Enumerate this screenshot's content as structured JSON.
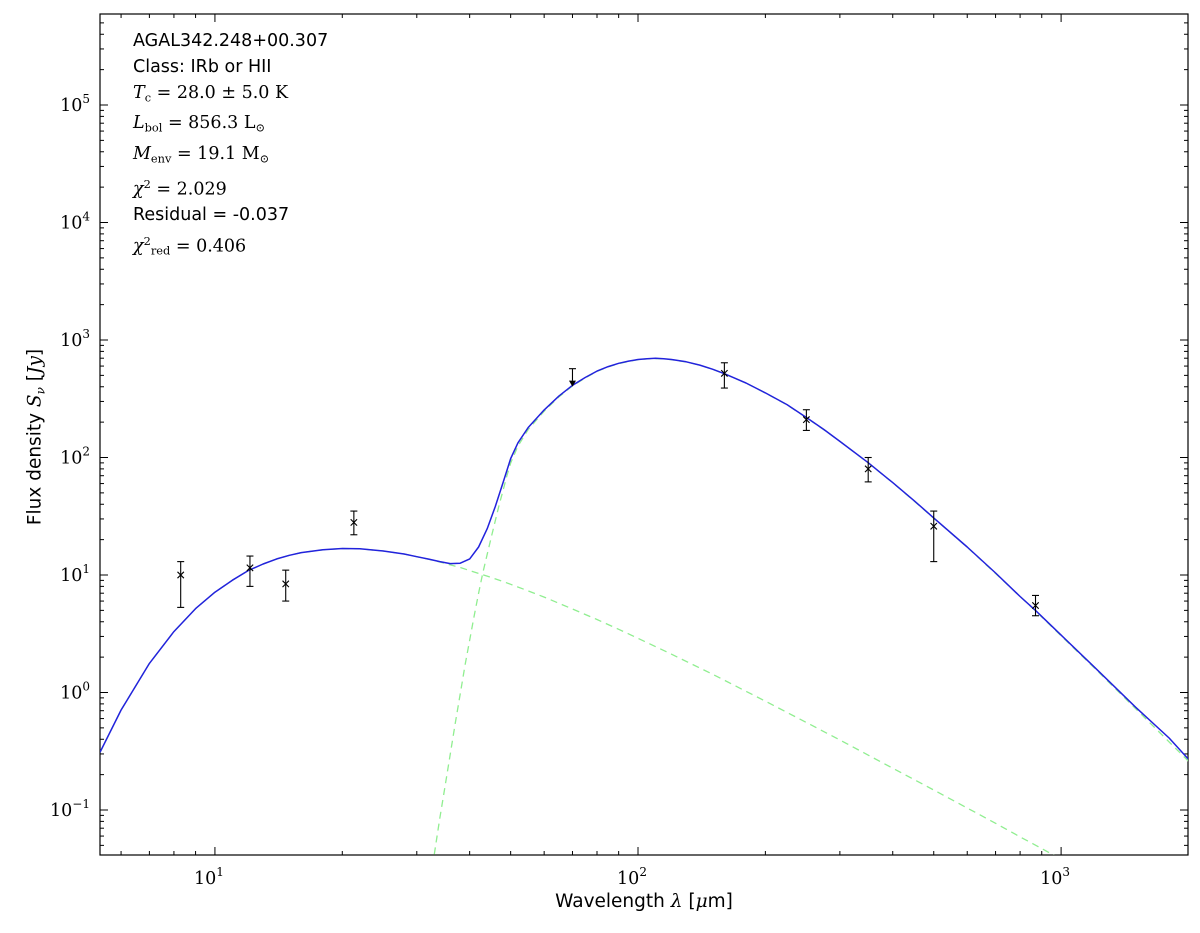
{
  "figure": {
    "title": "",
    "background": "#ffffff",
    "frame_color": "#000000"
  },
  "annotation": {
    "lines": [
      {
        "name": "source-name",
        "parts": [
          {
            "t": "AGAL342.248+00.307",
            "s": "sans"
          }
        ]
      },
      {
        "name": "source-class",
        "parts": [
          {
            "t": "Class: IRb or HII",
            "s": "sans"
          }
        ]
      },
      {
        "name": "dust-temperature",
        "parts": [
          {
            "t": "T",
            "s": "i"
          },
          {
            "t": "c",
            "s": "sub"
          },
          {
            "t": " = 28.0 ± 5.0 K",
            "s": "m"
          }
        ]
      },
      {
        "name": "bolometric-luminosity",
        "parts": [
          {
            "t": "L",
            "s": "i"
          },
          {
            "t": "bol",
            "s": "sub"
          },
          {
            "t": " = 856.3 L",
            "s": "m"
          },
          {
            "t": "⊙",
            "s": "sub"
          }
        ]
      },
      {
        "name": "envelope-mass",
        "parts": [
          {
            "t": "M",
            "s": "i"
          },
          {
            "t": "env",
            "s": "sub"
          },
          {
            "t": " = 19.1 M",
            "s": "m"
          },
          {
            "t": "⊙",
            "s": "sub"
          }
        ]
      },
      {
        "name": "chi-squared",
        "parts": [
          {
            "t": "χ",
            "s": "i"
          },
          {
            "t": "2",
            "s": "sup"
          },
          {
            "t": " = 2.029",
            "s": "m"
          }
        ]
      },
      {
        "name": "residual",
        "parts": [
          {
            "t": "Residual = -0.037",
            "s": "sans"
          }
        ]
      },
      {
        "name": "chi-squared-reduced",
        "parts": [
          {
            "t": "χ",
            "s": "i"
          },
          {
            "t": "2",
            "s": "sup"
          },
          {
            "t": "red",
            "s": "sub"
          },
          {
            "t": " = 0.406",
            "s": "m"
          }
        ]
      }
    ]
  },
  "chart_data": {
    "type": "line",
    "title": "",
    "xlabel": "Wavelength λ [μm]",
    "ylabel": "Flux density S_ν [Jy]",
    "xlabel_parts": [
      {
        "t": "Wavelength ",
        "s": "sans"
      },
      {
        "t": "λ",
        "s": "i"
      },
      {
        "t": " [",
        "s": "sans"
      },
      {
        "t": "μ",
        "s": "i"
      },
      {
        "t": "m]",
        "s": "sans"
      }
    ],
    "ylabel_parts": [
      {
        "t": "Flux density ",
        "s": "sans"
      },
      {
        "t": "S",
        "s": "i"
      },
      {
        "t": "ν",
        "s": "subi"
      },
      {
        "t": " [",
        "s": "sans"
      },
      {
        "t": "Jy",
        "s": "i"
      },
      {
        "t": "]",
        "s": "sans"
      }
    ],
    "xscale": "log",
    "yscale": "log",
    "xlim": [
      5.35,
      1995
    ],
    "ylim": [
      0.0414,
      595000
    ],
    "xtick_exponents": [
      1,
      2,
      3
    ],
    "ytick_exponents": [
      -1,
      0,
      1,
      2,
      3,
      4,
      5
    ],
    "xtick_labels": [
      "10^1",
      "10^2",
      "10^3"
    ],
    "ytick_labels": [
      "10^-1",
      "10^0",
      "10^1",
      "10^2",
      "10^3",
      "10^4",
      "10^5"
    ],
    "grid": false,
    "legend": null,
    "colors": {
      "total_model": "#2222dd",
      "components": "#90ee90",
      "data": "#000000"
    },
    "marker": {
      "symbol": "x",
      "color": "#000000",
      "size": 7
    },
    "series": [
      {
        "name": "cold-dust-greybody",
        "color": "#90ee90",
        "dash": "7 5",
        "width": 1.3,
        "points": [
          [
            33,
            0.042
          ],
          [
            34,
            0.085
          ],
          [
            35,
            0.16
          ],
          [
            36,
            0.3
          ],
          [
            37,
            0.55
          ],
          [
            38,
            0.97
          ],
          [
            39,
            1.7
          ],
          [
            40,
            2.8
          ],
          [
            41,
            4.5
          ],
          [
            42,
            7.0
          ],
          [
            43,
            10.5
          ],
          [
            44,
            15
          ],
          [
            45,
            21
          ],
          [
            46,
            29
          ],
          [
            47,
            40
          ],
          [
            48,
            53
          ],
          [
            49,
            70
          ],
          [
            50,
            90
          ],
          [
            52,
            125
          ],
          [
            55,
            173
          ],
          [
            60,
            248
          ],
          [
            65,
            328
          ],
          [
            70,
            407
          ],
          [
            75,
            475
          ],
          [
            80,
            540
          ],
          [
            85,
            592
          ],
          [
            90,
            630
          ],
          [
            95,
            658
          ],
          [
            100,
            680
          ],
          [
            105,
            690
          ],
          [
            110,
            695
          ],
          [
            115,
            690
          ],
          [
            120,
            680
          ],
          [
            130,
            650
          ],
          [
            140,
            610
          ],
          [
            150,
            564
          ],
          [
            160,
            516
          ],
          [
            180,
            430
          ],
          [
            200,
            354
          ],
          [
            225,
            281
          ],
          [
            250,
            218
          ],
          [
            275,
            172
          ],
          [
            300,
            137
          ],
          [
            350,
            90
          ],
          [
            400,
            61
          ],
          [
            450,
            42.4
          ],
          [
            500,
            30.5
          ],
          [
            600,
            17.2
          ],
          [
            700,
            10.3
          ],
          [
            800,
            6.57
          ],
          [
            870,
            4.95
          ],
          [
            1000,
            3.04
          ],
          [
            1200,
            1.61
          ],
          [
            1500,
            0.73
          ],
          [
            1800,
            0.38
          ],
          [
            2000,
            0.26
          ]
        ]
      },
      {
        "name": "warm-dust-component",
        "color": "#90ee90",
        "dash": "7 5",
        "width": 1.3,
        "points": [
          [
            5.35,
            0.31
          ],
          [
            6,
            0.71
          ],
          [
            7,
            1.77
          ],
          [
            8,
            3.3
          ],
          [
            9,
            5.18
          ],
          [
            10,
            7.14
          ],
          [
            11,
            9.03
          ],
          [
            12,
            10.93
          ],
          [
            13,
            12.4
          ],
          [
            14,
            13.7
          ],
          [
            15,
            14.7
          ],
          [
            16,
            15.5
          ],
          [
            18,
            16.4
          ],
          [
            20,
            16.8
          ],
          [
            22,
            16.7
          ],
          [
            25,
            16.0
          ],
          [
            28,
            15.1
          ],
          [
            30,
            14.3
          ],
          [
            32,
            13.6
          ],
          [
            34,
            12.9
          ],
          [
            36,
            12.2
          ],
          [
            38,
            11.6
          ],
          [
            40,
            10.9
          ],
          [
            44,
            9.78
          ],
          [
            48,
            8.78
          ],
          [
            50,
            8.33
          ],
          [
            55,
            7.32
          ],
          [
            60,
            6.48
          ],
          [
            70,
            5.14
          ],
          [
            80,
            4.18
          ],
          [
            90,
            3.45
          ],
          [
            100,
            2.89
          ],
          [
            120,
            2.12
          ],
          [
            150,
            1.43
          ],
          [
            200,
            0.843
          ],
          [
            250,
            0.556
          ],
          [
            300,
            0.394
          ],
          [
            400,
            0.227
          ],
          [
            500,
            0.148
          ],
          [
            600,
            0.104
          ],
          [
            700,
            0.077
          ],
          [
            800,
            0.059
          ],
          [
            900,
            0.047
          ],
          [
            1000,
            0.038
          ]
        ]
      },
      {
        "name": "total-model-fit",
        "color": "#2222dd",
        "dash": "none",
        "width": 1.5,
        "points": [
          [
            5.35,
            0.31
          ],
          [
            6,
            0.71
          ],
          [
            7,
            1.77
          ],
          [
            8,
            3.3
          ],
          [
            9,
            5.18
          ],
          [
            10,
            7.14
          ],
          [
            11,
            9.03
          ],
          [
            12,
            10.93
          ],
          [
            13,
            12.4
          ],
          [
            14,
            13.7
          ],
          [
            15,
            14.7
          ],
          [
            16,
            15.5
          ],
          [
            18,
            16.4
          ],
          [
            20,
            16.8
          ],
          [
            22,
            16.7
          ],
          [
            25,
            16.0
          ],
          [
            28,
            15.1
          ],
          [
            30,
            14.3
          ],
          [
            32,
            13.65
          ],
          [
            34,
            13.0
          ],
          [
            36,
            12.5
          ],
          [
            38,
            12.6
          ],
          [
            40,
            13.7
          ],
          [
            42,
            17.3
          ],
          [
            44,
            24.8
          ],
          [
            46,
            38.3
          ],
          [
            48,
            61.8
          ],
          [
            50,
            98
          ],
          [
            52,
            133
          ],
          [
            55,
            180
          ],
          [
            60,
            254
          ],
          [
            65,
            333
          ],
          [
            70,
            412
          ],
          [
            75,
            480
          ],
          [
            80,
            544
          ],
          [
            85,
            594
          ],
          [
            90,
            633
          ],
          [
            95,
            661
          ],
          [
            100,
            683
          ],
          [
            105,
            693
          ],
          [
            110,
            698
          ],
          [
            115,
            692
          ],
          [
            120,
            682
          ],
          [
            130,
            652
          ],
          [
            140,
            612
          ],
          [
            150,
            564
          ],
          [
            160,
            517
          ],
          [
            180,
            431
          ],
          [
            200,
            355
          ],
          [
            225,
            282
          ],
          [
            250,
            219
          ],
          [
            275,
            173
          ],
          [
            300,
            137
          ],
          [
            350,
            90.3
          ],
          [
            400,
            61.2
          ],
          [
            450,
            42.7
          ],
          [
            500,
            30.6
          ],
          [
            600,
            17.3
          ],
          [
            700,
            10.4
          ],
          [
            800,
            6.56
          ],
          [
            870,
            5.0
          ],
          [
            1000,
            3.08
          ],
          [
            1200,
            1.64
          ],
          [
            1500,
            0.75
          ],
          [
            1800,
            0.41
          ],
          [
            2000,
            0.27
          ]
        ]
      }
    ],
    "data_points": [
      {
        "x": 8.3,
        "y": 10.0,
        "err_lo": 4.7,
        "err_hi": 3.0
      },
      {
        "x": 12.1,
        "y": 11.5,
        "err_lo": 3.5,
        "err_hi": 3.0
      },
      {
        "x": 14.7,
        "y": 8.4,
        "err_lo": 2.4,
        "err_hi": 2.6
      },
      {
        "x": 21.3,
        "y": 28.0,
        "err_lo": 6.0,
        "err_hi": 7.0
      },
      {
        "x": 160,
        "y": 520,
        "err_lo": 130,
        "err_hi": 120
      },
      {
        "x": 250,
        "y": 210,
        "err_lo": 40,
        "err_hi": 45
      },
      {
        "x": 350,
        "y": 80,
        "err_lo": 18,
        "err_hi": 20
      },
      {
        "x": 500,
        "y": 26,
        "err_lo": 13,
        "err_hi": 9
      },
      {
        "x": 870,
        "y": 5.5,
        "err_lo": 1.0,
        "err_hi": 1.2
      }
    ],
    "upper_limits": [
      {
        "x": 70,
        "y": 570
      }
    ]
  }
}
